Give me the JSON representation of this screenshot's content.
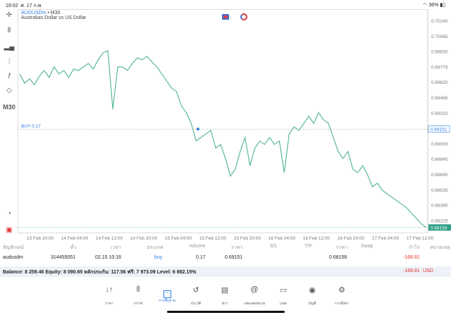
{
  "status": {
    "time": "19:02",
    "date": "ศ. 17 ก.พ.",
    "battery": "36%"
  },
  "toolbar": {
    "timeframe": "M30"
  },
  "chart": {
    "symbol": "AUDUSDm",
    "timeframe": "• M30",
    "description": "Australian Dollar vs US Dollar",
    "buy_label": "BUY 0.17",
    "buy_price": 0.69151,
    "buy_price_label": "0.69151",
    "current_price_label": "0.68158",
    "line_color": "#5bb89a",
    "accent": "#2a7ae2",
    "y_ticks": [
      "0.70240",
      "0.70085",
      "0.69930",
      "0.69775",
      "0.69620",
      "0.69465",
      "0.69310",
      "0.69000",
      "0.68845",
      "0.68690",
      "0.68535",
      "0.68380",
      "0.68225"
    ],
    "x_ticks": [
      "13 Feb 20:00",
      "14 Feb 04:00",
      "14 Feb 12:00",
      "14 Feb 20:00",
      "15 Feb 04:00",
      "15 Feb 12:00",
      "15 Feb 20:00",
      "16 Feb 04:00",
      "16 Feb 12:00",
      "16 Feb 20:00",
      "17 Feb 04:00",
      "17 Feb 12:00"
    ],
    "prices": [
      0.69707,
      0.69614,
      0.69657,
      0.696,
      0.69685,
      0.69742,
      0.69671,
      0.69778,
      0.69707,
      0.69742,
      0.69671,
      0.69757,
      0.69742,
      0.69778,
      0.69813,
      0.69757,
      0.69849,
      0.6992,
      0.69941,
      0.69351,
      0.69778,
      0.69778,
      0.69742,
      0.69813,
      0.6987,
      0.69849,
      0.69885,
      0.69828,
      0.69778,
      0.69707,
      0.69636,
      0.69565,
      0.69529,
      0.69387,
      0.69316,
      0.69209,
      0.69031,
      0.69067,
      0.69102,
      0.69138,
      0.6896,
      0.68996,
      0.68854,
      0.68676,
      0.68747,
      0.68925,
      0.69067,
      0.68782,
      0.6896,
      0.69031,
      0.68996,
      0.69067,
      0.68996,
      0.69031,
      0.68711,
      0.69102,
      0.69173,
      0.69138,
      0.69209,
      0.6928,
      0.69209,
      0.69316,
      0.69245,
      0.69209,
      0.69067,
      0.68925,
      0.68854,
      0.68925,
      0.68747,
      0.68711,
      0.68782,
      0.6869,
      0.68569,
      0.68605,
      0.68534,
      0.68498,
      0.68462,
      0.68427,
      0.68391,
      0.68356,
      0.68299,
      0.68249,
      0.68192,
      0.68158
    ]
  },
  "table": {
    "headers": [
      "สัญลักษณ์",
      "ตั๋ว",
      "เวลา",
      "ประเภท",
      "Volume",
      "ราคา",
      "S/L",
      "T/P",
      "ราคา",
      "Swap",
      "กำไร",
      "หมายเหตุ"
    ],
    "row": {
      "symbol": "audusdm",
      "ticket": "314455051",
      "time": "02.15 10:16",
      "type": "buy",
      "volume": "0.17",
      "open_price": "0.69151",
      "sl": "",
      "tp": "",
      "price": "0.68158",
      "swap": "",
      "profit": "-168.81",
      "comment": ""
    },
    "balance": "Balance: 8 259.46 Equity: 8 090.65 หลักประกัน: 117.56 ฟรี: 7 973.09 Level: 6 882.15%",
    "total": "-168.81",
    "currency": "USD"
  },
  "nav": [
    {
      "label": "ราคา",
      "icon": "↓↑"
    },
    {
      "label": "กราฟ",
      "icon": "⫴"
    },
    {
      "label": "การซื้อขาย",
      "icon": "📈"
    },
    {
      "label": "ประวัติ",
      "icon": "↺"
    },
    {
      "label": "ข่าว",
      "icon": "▤"
    },
    {
      "label": "กล่องจดหมาย",
      "icon": "@"
    },
    {
      "label": "แชท",
      "icon": "▭"
    },
    {
      "label": "บัญชี",
      "icon": "◉"
    },
    {
      "label": "การตั้งค่า",
      "icon": "⚙"
    }
  ]
}
